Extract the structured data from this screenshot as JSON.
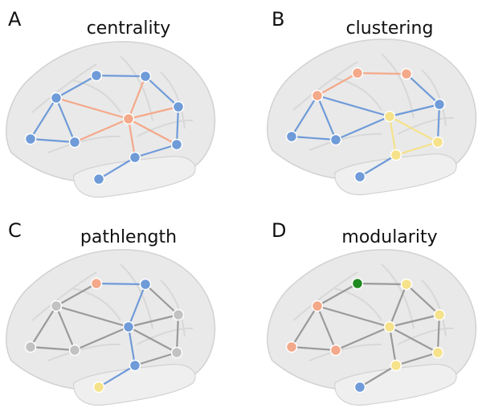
{
  "panels": [
    {
      "letter": "A",
      "title": "centrality"
    },
    {
      "letter": "B",
      "title": "clustering"
    },
    {
      "letter": "C",
      "title": "pathlength"
    },
    {
      "letter": "D",
      "title": "modularity"
    }
  ]
}
